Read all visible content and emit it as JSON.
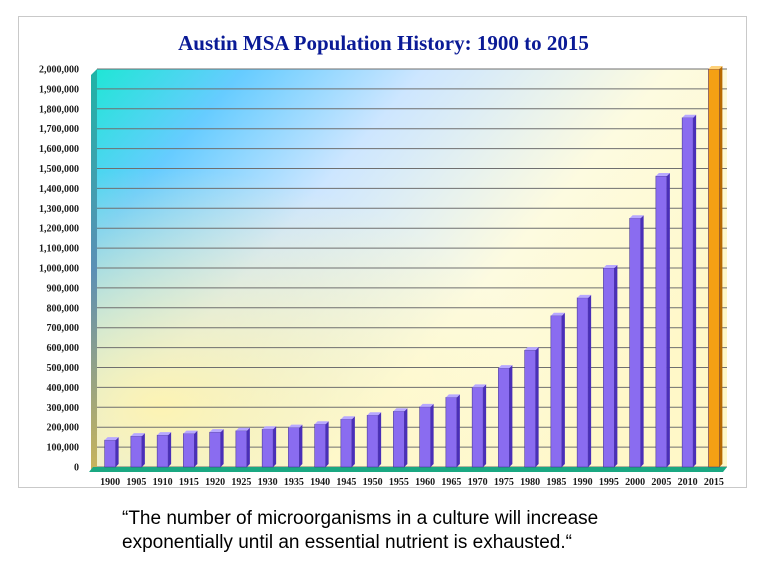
{
  "chart_data": {
    "type": "bar",
    "title": "Austin MSA Population History: 1900 to 2015",
    "xlabel": "",
    "ylabel": "",
    "ylim": [
      0,
      2000000
    ],
    "ytick_step": 100000,
    "grid": true,
    "legend": "none",
    "categories": [
      "1900",
      "1905",
      "1910",
      "1915",
      "1920",
      "1925",
      "1930",
      "1935",
      "1940",
      "1945",
      "1950",
      "1955",
      "1960",
      "1965",
      "1970",
      "1975",
      "1980",
      "1985",
      "1990",
      "1995",
      "2000",
      "2005",
      "2010",
      "2015"
    ],
    "values": [
      135000,
      155000,
      160000,
      168000,
      175000,
      182000,
      190000,
      198000,
      215000,
      240000,
      260000,
      280000,
      302000,
      350000,
      400000,
      497000,
      587000,
      760000,
      850000,
      1000000,
      1250000,
      1462000,
      1755000,
      2000000
    ],
    "highlight_index": 23,
    "colors": {
      "bar": "#8a6cf0",
      "bar_side": "#4a2fb8",
      "bar_top": "#b8a8ff",
      "highlight": "#f5a014",
      "highlight_side": "#b86a00",
      "highlight_top": "#ffd27a",
      "base": "#1aa882",
      "grid": "#6f6f6f",
      "title": "#0a1a96"
    }
  },
  "caption": {
    "line1": "“The number of microorganisms in a culture will increase",
    "line2": "exponentially until an essential nutrient is exhausted.“"
  }
}
